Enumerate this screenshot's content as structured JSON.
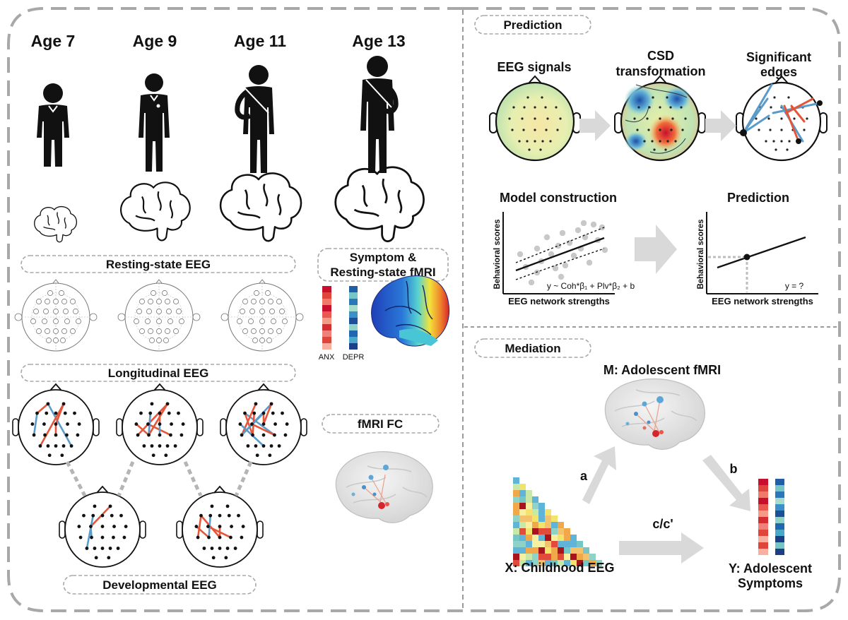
{
  "ages": [
    "Age 7",
    "Age 9",
    "Age 11",
    "Age 13"
  ],
  "labels": {
    "resting_state_eeg": "Resting-state EEG",
    "longitudinal_eeg": "Longitudinal EEG",
    "developmental_eeg": "Developmental EEG",
    "symptom_line1": "Symptom &",
    "symptom_line2": "Resting-state fMRI",
    "anx": "ANX",
    "depr": "DEPR",
    "fmri_fc": "fMRI FC"
  },
  "prediction": {
    "header": "Prediction",
    "eeg_signals": "EEG signals",
    "csd_line1": "CSD",
    "csd_line2": "transformation",
    "sig_line1": "Significant",
    "sig_line2": "edges",
    "model_construction": "Model construction",
    "prediction_title": "Prediction",
    "ylabel": "Behavioral scores",
    "xlabel": "EEG network strengths",
    "formula": "y ~ Coh*β₁ + Plv*β₂ + b",
    "y_question": "y = ?"
  },
  "mediation": {
    "header": "Mediation",
    "m_label": "M: Adolescent fMRI",
    "a": "a",
    "b": "b",
    "c": "c/c'",
    "x_label": "X: Childhood EEG",
    "y_line1": "Y: Adolescent",
    "y_line2": "Symptoms"
  },
  "colors": {
    "edge_red": "#e5553a",
    "edge_blue": "#5b9bc9",
    "arrow_gray": "#d9d9d9",
    "dash_gray": "#a8a8a8"
  }
}
